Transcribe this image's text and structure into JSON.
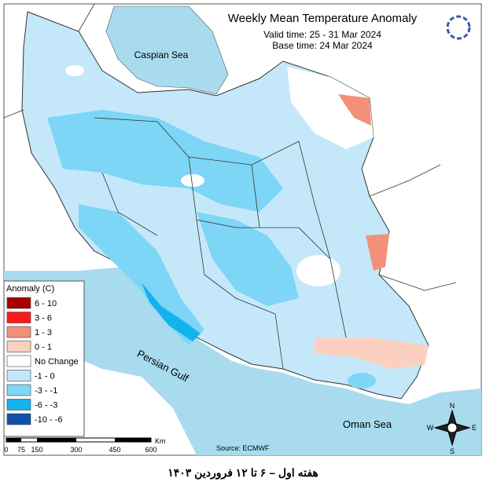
{
  "header": {
    "title": "Weekly Mean Temperature Anomaly",
    "valid_time": "Valid time: 25 - 31 Mar 2024",
    "base_time": "Base time: 24 Mar 2024"
  },
  "labels": {
    "caspian": "Caspian Sea",
    "gulf": "Persian Gulf",
    "oman": "Oman Sea"
  },
  "legend": {
    "title": "Anomaly (C)",
    "items": [
      {
        "label": "6 - 10",
        "color": "#a50000"
      },
      {
        "label": "3 - 6",
        "color": "#ff1a1a"
      },
      {
        "label": "1 - 3",
        "color": "#f3907a"
      },
      {
        "label": "0 - 1",
        "color": "#fbd0c0"
      },
      {
        "label": "No Change",
        "color": "#ffffff"
      },
      {
        "label": "-1 - 0",
        "color": "#c4e8fa"
      },
      {
        "label": "-3 - -1",
        "color": "#7dd6f6"
      },
      {
        "label": "-6 - -3",
        "color": "#14b2ef"
      },
      {
        "label": "-10 - -6",
        "color": "#1050a8"
      }
    ]
  },
  "scale_bar": {
    "ticks": [
      "0",
      "75",
      "150",
      "300",
      "450",
      "600"
    ],
    "unit": "Km"
  },
  "source": "Source: ECMWF",
  "compass": {
    "n": "N",
    "e": "E",
    "s": "S",
    "w": "W"
  },
  "caption": "هفته اول – ۶ تا ۱۲ فروردین ۱۴۰۳"
}
